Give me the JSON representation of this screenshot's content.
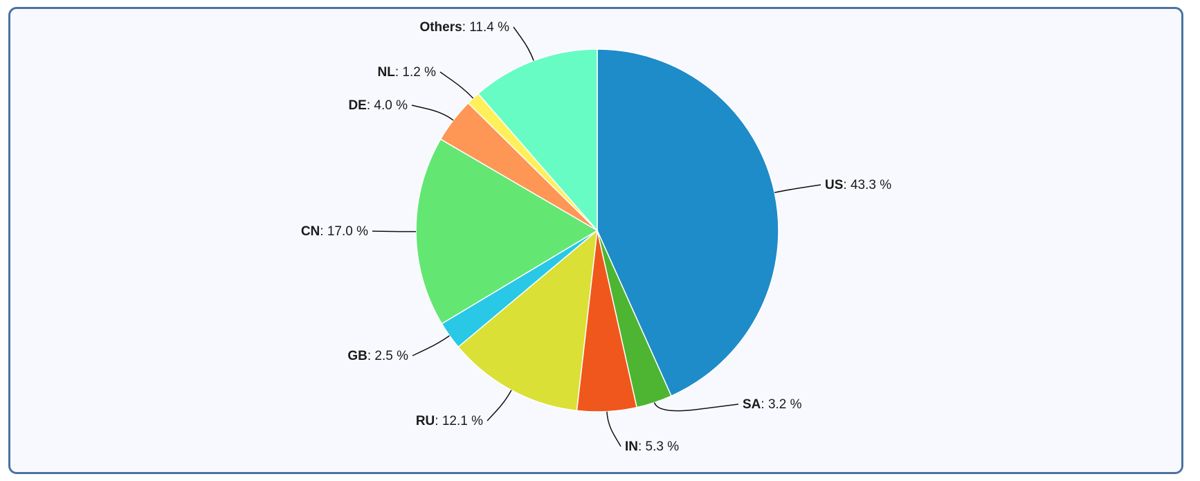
{
  "chart_data": {
    "type": "pie",
    "title": "",
    "slices": [
      {
        "label": "US",
        "value": 43.3,
        "display": "43.3 %",
        "color": "#1e8cc8"
      },
      {
        "label": "SA",
        "value": 3.2,
        "display": "3.2 %",
        "color": "#4db531"
      },
      {
        "label": "IN",
        "value": 5.3,
        "display": "5.3 %",
        "color": "#f0571c"
      },
      {
        "label": "RU",
        "value": 12.1,
        "display": "12.1 %",
        "color": "#dae035"
      },
      {
        "label": "GB",
        "value": 2.5,
        "display": "2.5 %",
        "color": "#28c8e6"
      },
      {
        "label": "CN",
        "value": 17.0,
        "display": "17.0 %",
        "color": "#64e673"
      },
      {
        "label": "DE",
        "value": 4.0,
        "display": "4.0 %",
        "color": "#fe9655"
      },
      {
        "label": "NL",
        "value": 1.2,
        "display": "1.2 %",
        "color": "#fff05a"
      },
      {
        "label": "Others",
        "value": 11.4,
        "display": "11.4 %",
        "color": "#67fcc3"
      }
    ],
    "start_angle": "top",
    "direction": "clockwise",
    "legend": "none"
  }
}
